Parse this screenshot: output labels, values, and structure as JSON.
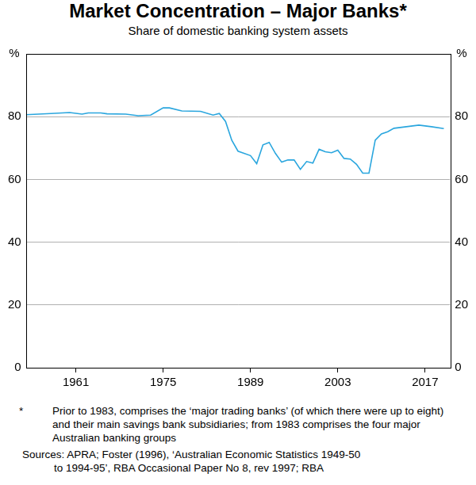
{
  "chart_data": {
    "type": "line",
    "title": "Market Concentration – Major Banks*",
    "subtitle": "Share of domestic banking system assets",
    "ylabel": "%",
    "notes": [
      "*",
      "Prior to 1983, comprises the ‘major trading banks’ (of which there were up to eight) and their main savings bank subsidiaries; from 1983 comprises the four major Australian banking groups"
    ],
    "sources": [
      "Sources: APRA; Foster (1996), ‘Australian Economic Statistics 1949-50",
      "to 1994-95’, RBA Occasional Paper No 8, rev 1997; RBA"
    ],
    "x": [
      1953,
      1957,
      1960,
      1962,
      1963,
      1965,
      1966,
      1969,
      1971,
      1973,
      1975,
      1976,
      1978,
      1981,
      1983,
      1984,
      1985,
      1986,
      1987,
      1989,
      1990,
      1991,
      1992,
      1993,
      1994,
      1995,
      1996,
      1997,
      1998,
      1999,
      2000,
      2001,
      2002,
      2003,
      2004,
      2005,
      2006,
      2007,
      2008,
      2009,
      2010,
      2011,
      2012,
      2014,
      2016,
      2018,
      2020
    ],
    "values": [
      80.6,
      81.0,
      81.3,
      80.8,
      81.2,
      81.2,
      80.9,
      80.8,
      80.3,
      80.5,
      82.8,
      82.8,
      81.8,
      81.7,
      80.5,
      81.0,
      78.5,
      72.5,
      69.0,
      67.6,
      65.0,
      71.0,
      71.8,
      68.3,
      65.5,
      66.2,
      66.2,
      63.2,
      65.7,
      65.2,
      69.6,
      68.8,
      68.5,
      69.3,
      66.7,
      66.5,
      64.8,
      62.0,
      62.0,
      72.5,
      74.5,
      75.2,
      76.3,
      76.8,
      77.3,
      76.8,
      76.2
    ],
    "color": "#2aa6de",
    "xlim": [
      1953,
      2021
    ],
    "xticks": [
      1961,
      1975,
      1989,
      2003,
      2017
    ],
    "ylim": [
      0,
      100
    ],
    "yticks": [
      0,
      20,
      40,
      60,
      80
    ],
    "grid": true
  }
}
